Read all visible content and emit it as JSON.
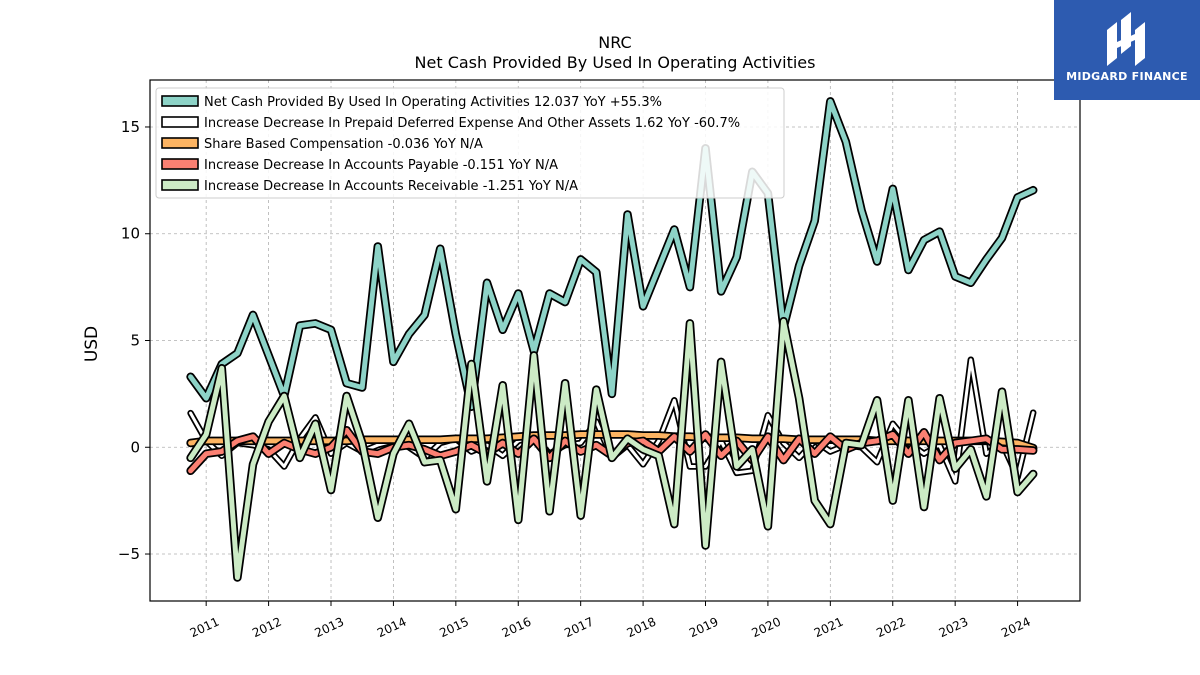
{
  "brand": {
    "name": "MIDGARD FINANCE",
    "icon": "midgard-logo-icon",
    "color": "#2d5bb0"
  },
  "chart_data": {
    "type": "line",
    "title": "NRC",
    "subtitle": "Net Cash Provided By Used In Operating Activities",
    "xlabel": "",
    "ylabel": "USD",
    "ylim": [
      -7.2,
      17.2
    ],
    "xlim": [
      2010.1,
      2025.0
    ],
    "yticks": [
      -5,
      0,
      5,
      10,
      15
    ],
    "ytick_labels": [
      "−5",
      "0",
      "5",
      "10",
      "15"
    ],
    "xticks": [
      2011,
      2012,
      2013,
      2014,
      2015,
      2016,
      2017,
      2018,
      2019,
      2020,
      2021,
      2022,
      2023,
      2024
    ],
    "xtick_labels": [
      "2011",
      "2012",
      "2013",
      "2014",
      "2015",
      "2016",
      "2017",
      "2018",
      "2019",
      "2020",
      "2021",
      "2022",
      "2023",
      "2024"
    ],
    "grid": true,
    "legend_position": "top-left",
    "x": [
      2010.75,
      2011.0,
      2011.25,
      2011.5,
      2011.75,
      2012.0,
      2012.25,
      2012.5,
      2012.75,
      2013.0,
      2013.25,
      2013.5,
      2013.75,
      2014.0,
      2014.25,
      2014.5,
      2014.75,
      2015.0,
      2015.25,
      2015.5,
      2015.75,
      2016.0,
      2016.25,
      2016.5,
      2016.75,
      2017.0,
      2017.25,
      2017.5,
      2017.75,
      2018.0,
      2018.25,
      2018.5,
      2018.75,
      2019.0,
      2019.25,
      2019.5,
      2019.75,
      2020.0,
      2020.25,
      2020.5,
      2020.75,
      2021.0,
      2021.25,
      2021.5,
      2021.75,
      2022.0,
      2022.25,
      2022.5,
      2022.75,
      2023.0,
      2023.25,
      2023.5,
      2023.75,
      2024.0,
      2024.25
    ],
    "series": [
      {
        "name": "Net Cash Provided By Used In Operating Activities",
        "legend_label": "Net Cash Provided By Used In Operating Activities  12.037 YoY +55.3%",
        "color": "#8dd3c7",
        "width": 5,
        "values": [
          3.3,
          2.3,
          3.9,
          4.4,
          6.2,
          4.3,
          2.4,
          5.7,
          5.8,
          5.5,
          3.0,
          2.8,
          9.4,
          4.0,
          5.3,
          6.2,
          9.3,
          5.3,
          1.9,
          7.7,
          5.5,
          7.2,
          4.5,
          7.2,
          6.8,
          8.8,
          8.2,
          2.5,
          10.9,
          6.6,
          8.4,
          10.2,
          7.5,
          14.0,
          7.3,
          8.9,
          12.9,
          11.9,
          5.6,
          8.5,
          10.6,
          16.2,
          14.3,
          11.1,
          8.7,
          12.1,
          8.3,
          9.7,
          10.1,
          8.0,
          7.7,
          8.8,
          9.8,
          11.7,
          12.037
        ]
      },
      {
        "name": "Increase Decrease In Prepaid Deferred Expense And Other Assets",
        "legend_label": "Increase Decrease In Prepaid Deferred Expense And Other Assets  1.62 YoY -60.7%",
        "color": "#ffffff",
        "width": 3,
        "values": [
          1.6,
          0.3,
          -0.4,
          0.2,
          0.1,
          -0.1,
          -0.9,
          0.4,
          1.4,
          -0.3,
          0.2,
          -0.2,
          0.1,
          0.3,
          0.0,
          -0.5,
          0.2,
          0.4,
          -0.2,
          0.1,
          -0.4,
          0.3,
          0.5,
          -0.3,
          0.1,
          0.2,
          1.2,
          -0.5,
          0.1,
          -0.8,
          0.3,
          2.2,
          -0.9,
          -0.9,
          0.3,
          -1.2,
          -1.1,
          1.5,
          0.2,
          -0.5,
          0.3,
          -0.2,
          0.1,
          0.0,
          -0.7,
          1.1,
          0.2,
          -0.3,
          0.1,
          -1.6,
          4.1,
          -0.3,
          0.2,
          -1.4,
          1.62
        ]
      },
      {
        "name": "Share Based Compensation",
        "legend_label": "Share Based Compensation  -0.036 YoY N/A",
        "color": "#fdb462",
        "width": 5,
        "values": [
          0.2,
          0.3,
          0.3,
          0.3,
          0.3,
          0.3,
          0.3,
          0.3,
          0.3,
          0.3,
          0.3,
          0.35,
          0.35,
          0.35,
          0.35,
          0.35,
          0.35,
          0.4,
          0.4,
          0.4,
          0.45,
          0.5,
          0.55,
          0.55,
          0.55,
          0.6,
          0.6,
          0.6,
          0.6,
          0.55,
          0.55,
          0.5,
          0.5,
          0.45,
          0.45,
          0.45,
          0.4,
          0.4,
          0.4,
          0.35,
          0.35,
          0.35,
          0.35,
          0.35,
          0.3,
          0.3,
          0.3,
          0.3,
          0.3,
          0.3,
          0.3,
          0.3,
          0.25,
          0.2,
          -0.036
        ]
      },
      {
        "name": "Increase Decrease In Accounts Payable",
        "legend_label": "Increase Decrease In Accounts Payable  -0.151 YoY N/A",
        "color": "#fb8072",
        "width": 5,
        "values": [
          -1.1,
          -0.3,
          -0.2,
          0.3,
          0.5,
          -0.3,
          0.2,
          -0.1,
          -0.3,
          0.0,
          0.8,
          -0.2,
          -0.3,
          0.0,
          0.1,
          -0.1,
          -0.4,
          -0.2,
          0.1,
          -0.3,
          0.2,
          -0.3,
          0.4,
          -0.5,
          0.3,
          -0.2,
          0.1,
          -0.4,
          0.2,
          0.3,
          -0.2,
          0.5,
          -0.2,
          0.6,
          -0.4,
          0.3,
          -0.6,
          0.5,
          -0.6,
          0.4,
          -0.3,
          0.5,
          -0.1,
          0.2,
          0.3,
          0.6,
          -0.3,
          0.7,
          -0.6,
          0.2,
          0.3,
          0.4,
          -0.1,
          -0.1,
          -0.151
        ]
      },
      {
        "name": "Increase Decrease In Accounts Receivable",
        "legend_label": "Increase Decrease In Accounts Receivable  -1.251 YoY N/A",
        "color": "#ccebc5",
        "width": 5,
        "values": [
          -0.5,
          0.6,
          3.7,
          -6.1,
          -0.8,
          1.2,
          2.4,
          -0.5,
          1.1,
          -2.0,
          2.4,
          0.2,
          -3.3,
          -0.3,
          1.1,
          -0.7,
          -0.6,
          -2.9,
          3.9,
          -1.6,
          2.9,
          -3.4,
          4.3,
          -3.0,
          3.0,
          -3.2,
          2.7,
          -0.5,
          0.4,
          -0.1,
          -0.4,
          -3.6,
          5.8,
          -4.6,
          4.0,
          -0.9,
          -0.1,
          -3.7,
          5.9,
          2.3,
          -2.5,
          -3.6,
          0.2,
          0.1,
          2.2,
          -2.5,
          2.2,
          -2.8,
          2.3,
          -1.0,
          -0.1,
          -2.3,
          2.6,
          -2.1,
          -1.251
        ]
      }
    ]
  }
}
